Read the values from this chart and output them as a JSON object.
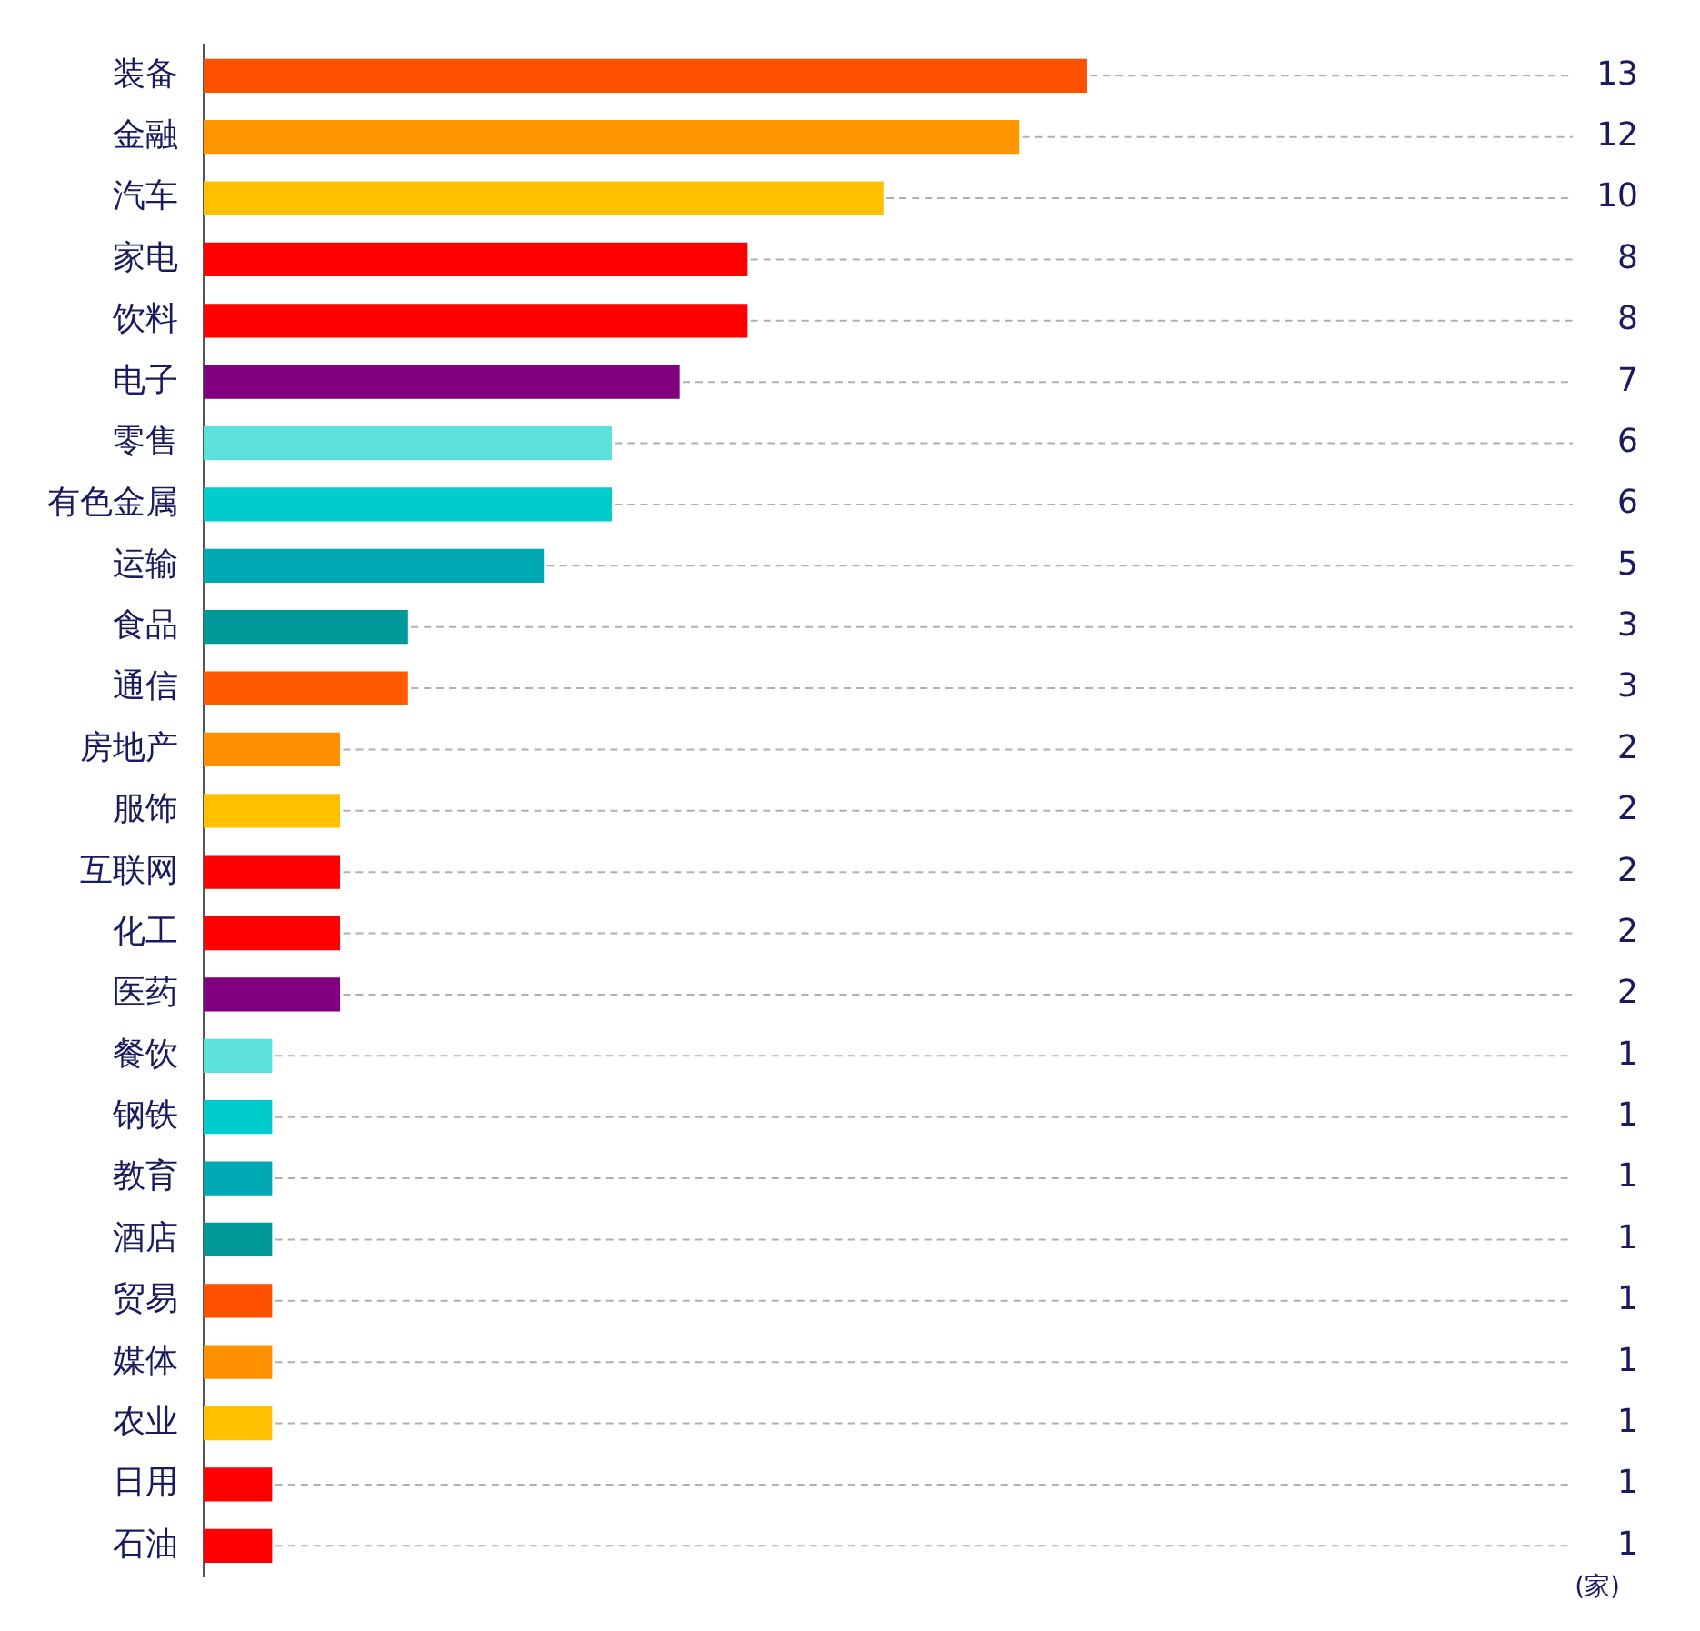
{
  "chart_data": {
    "type": "bar",
    "orientation": "horizontal",
    "categories": [
      "装备",
      "金融",
      "汽车",
      "家电",
      "饮料",
      "电子",
      "零售",
      "有色金属",
      "运输",
      "食品",
      "通信",
      "房地产",
      "服饰",
      "互联网",
      "化工",
      "医药",
      "餐饮",
      "钢铁",
      "教育",
      "酒店",
      "贸易",
      "媒体",
      "农业",
      "日用",
      "石油"
    ],
    "values": [
      13,
      12,
      10,
      8,
      8,
      7,
      6,
      6,
      5,
      3,
      3,
      2,
      2,
      2,
      2,
      2,
      1,
      1,
      1,
      1,
      1,
      1,
      1,
      1,
      1
    ],
    "colors": [
      "#ff5000",
      "#ff9500",
      "#ffc000",
      "#ff0000",
      "#ff0000",
      "#800080",
      "#5ce0dc",
      "#00cccc",
      "#00a8b4",
      "#009999",
      "#ff5a00",
      "#ff9000",
      "#ffc000",
      "#ff0000",
      "#ff0000",
      "#800080",
      "#5ce0dc",
      "#00cccc",
      "#00a8b4",
      "#009999",
      "#ff5000",
      "#ff9000",
      "#ffc000",
      "#ff0000",
      "#ff0000"
    ],
    "data_labels": true,
    "legend": false,
    "annotations": [
      "(家)"
    ]
  }
}
